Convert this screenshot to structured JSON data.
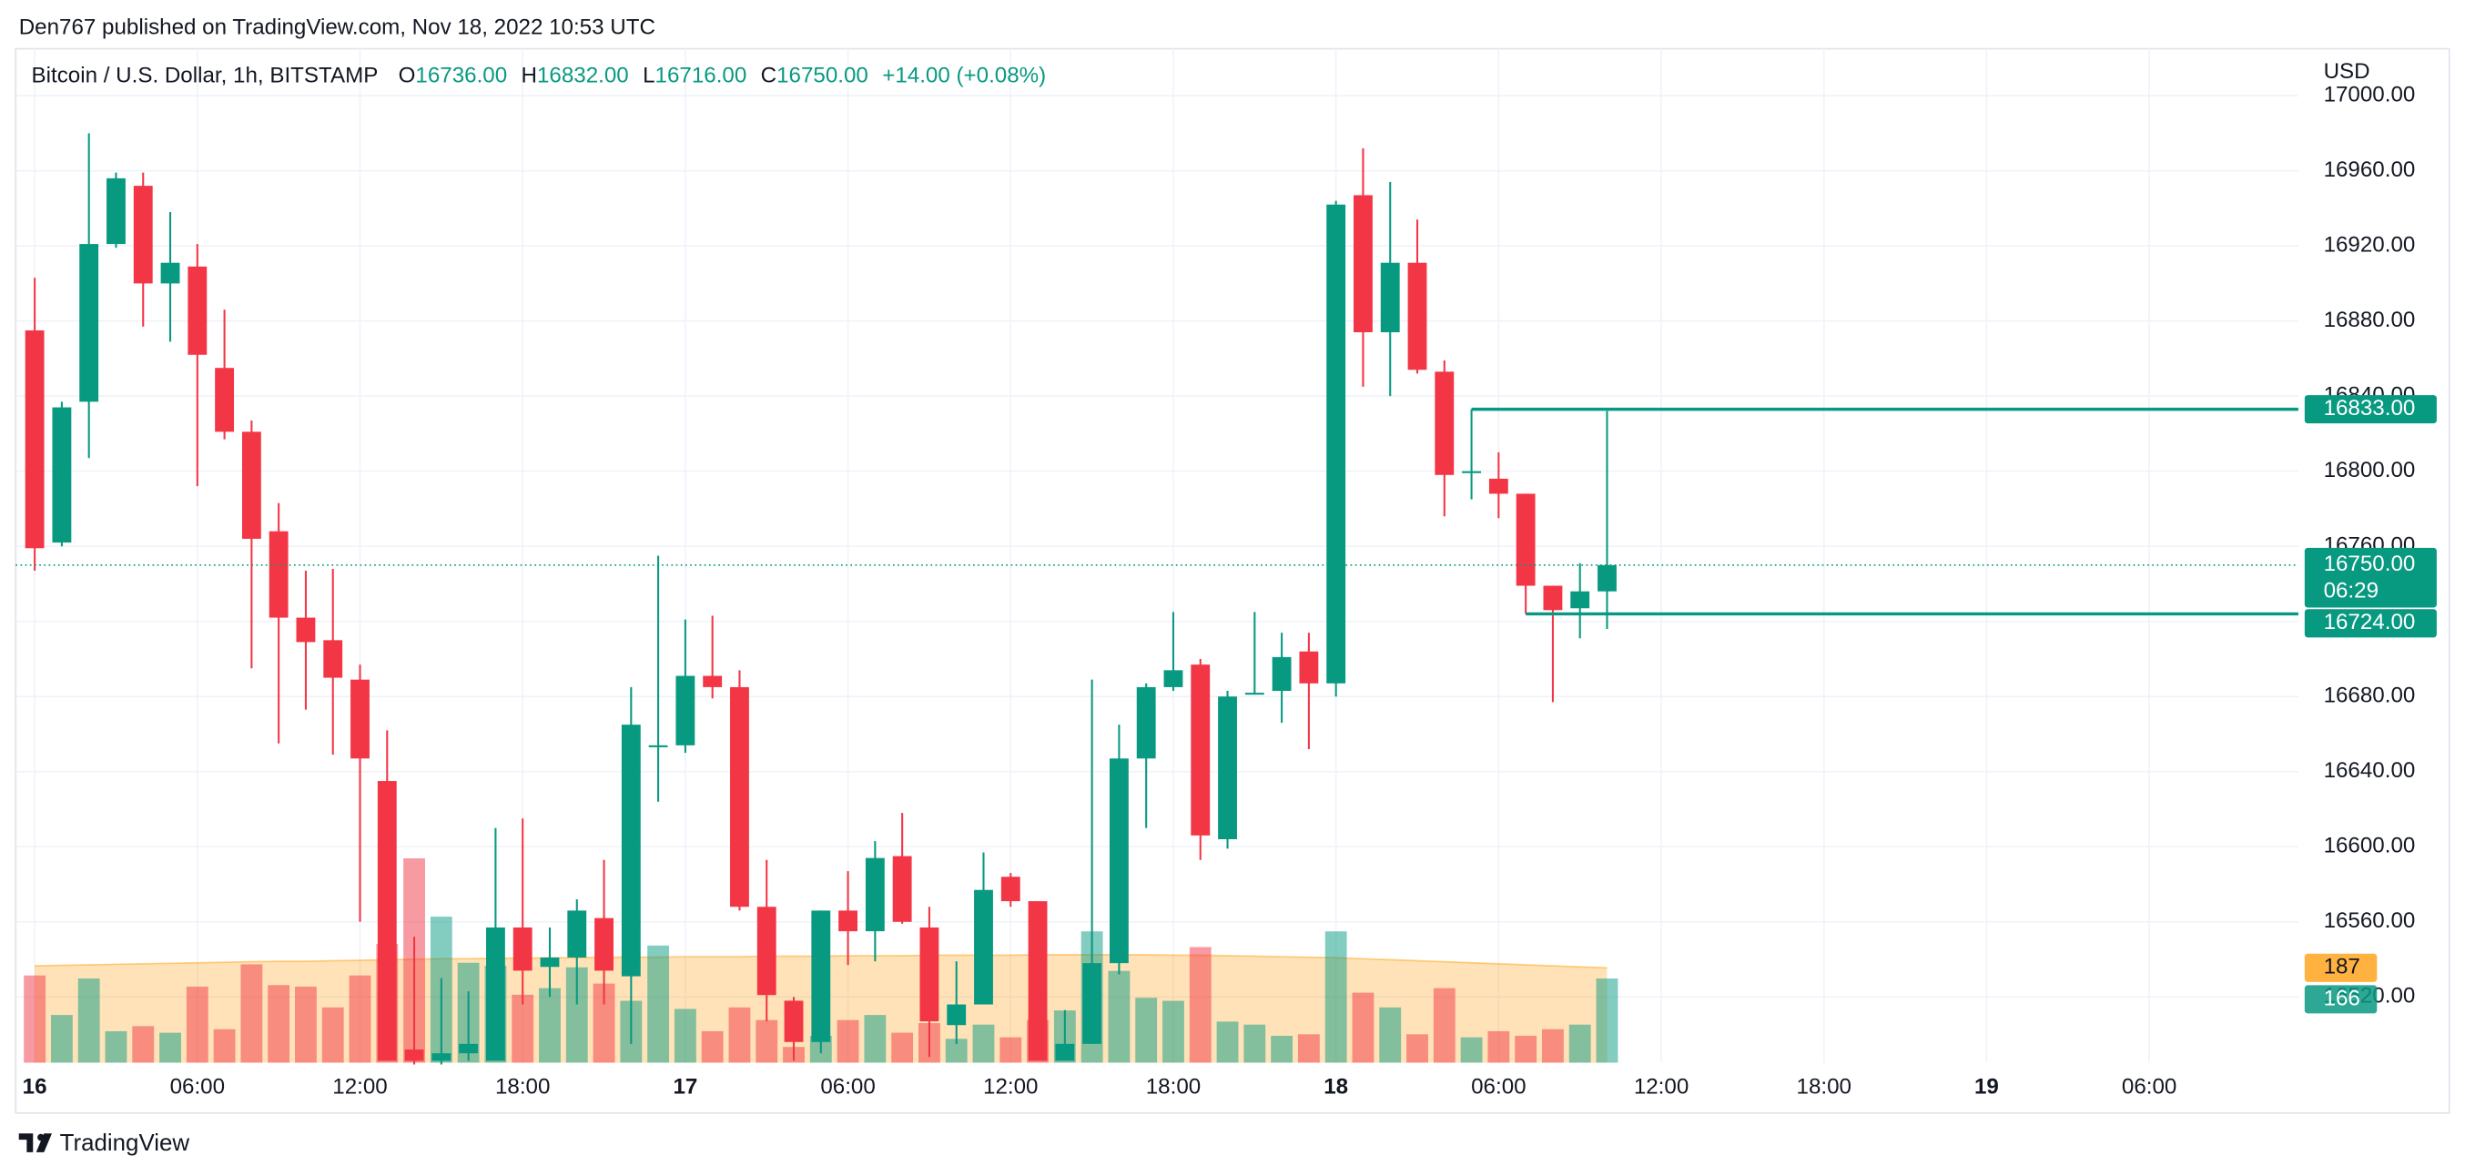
{
  "header": {
    "text": "Den767 published on TradingView.com, Nov 18, 2022 10:53 UTC"
  },
  "footer": {
    "brand": "TradingView"
  },
  "legend": {
    "symbol": "Bitcoin / U.S. Dollar, 1h, BITSTAMP",
    "items": [
      {
        "key": "O",
        "value": "16736.00"
      },
      {
        "key": "H",
        "value": "16832.00"
      },
      {
        "key": "L",
        "value": "16716.00"
      },
      {
        "key": "C",
        "value": "16750.00"
      }
    ],
    "change": "+14.00 (+0.08%)"
  },
  "chart_data": {
    "type": "candlestick",
    "currency": "USD",
    "up_color": "#089981",
    "down_color": "#f23645",
    "up_volume_color": "rgba(8,153,129,0.5)",
    "down_volume_color": "rgba(242,54,69,0.5)",
    "volume_ma_color": "#ff9800",
    "grid": true,
    "x": [
      0,
      1,
      2,
      3,
      4,
      5,
      6,
      7,
      8,
      9,
      10,
      11,
      12,
      13,
      14,
      15,
      16,
      17,
      18,
      19,
      20,
      21,
      22,
      23,
      24,
      25,
      26,
      27,
      28,
      29,
      30,
      31,
      32,
      33,
      34,
      35,
      36,
      37,
      38,
      39,
      40,
      41,
      42,
      43,
      44,
      45,
      46,
      47,
      48,
      49,
      50,
      51,
      52,
      53,
      54,
      55,
      56,
      57,
      58
    ],
    "open": [
      16875,
      16762,
      16837,
      16921,
      16952,
      16900,
      16909,
      16855,
      16821,
      16768,
      16722,
      16710,
      16689,
      16635,
      16492,
      16486,
      16490,
      16486,
      16557,
      16536,
      16541,
      16562,
      16531,
      16653,
      16654,
      16691,
      16685,
      16568,
      16518,
      16496,
      16566,
      16555,
      16595,
      16557,
      16505,
      16516,
      16584,
      16571,
      16486,
      16495,
      16538,
      16647,
      16685,
      16697,
      16604,
      16681,
      16683,
      16704,
      16687,
      16947,
      16874,
      16911,
      16853,
      16799,
      16796,
      16788,
      16739,
      16727,
      16736
    ],
    "high": [
      16903,
      16837,
      16980,
      16959,
      16959,
      16938,
      16921,
      16886,
      16827,
      16783,
      16747,
      16748,
      16697,
      16662,
      16552,
      16530,
      16523,
      16610,
      16615,
      16557,
      16572,
      16593,
      16685,
      16755,
      16721,
      16723,
      16694,
      16593,
      16520,
      16566,
      16587,
      16603,
      16618,
      16568,
      16539,
      16597,
      16586,
      16571,
      16513,
      16689,
      16665,
      16687,
      16725,
      16700,
      16683,
      16725,
      16714,
      16714,
      16944,
      16972,
      16954,
      16934,
      16859,
      16833,
      16810,
      16788,
      16739,
      16751,
      16832
    ],
    "low": [
      16747,
      16760,
      16807,
      16919,
      16877,
      16869,
      16792,
      16817,
      16695,
      16655,
      16673,
      16649,
      16560,
      16486,
      16484,
      16484,
      16486,
      16486,
      16516,
      16520,
      16516,
      16516,
      16495,
      16624,
      16650,
      16679,
      16566,
      16507,
      16486,
      16490,
      16537,
      16539,
      16559,
      16488,
      16495,
      16516,
      16568,
      16486,
      16486,
      16495,
      16532,
      16610,
      16683,
      16593,
      16599,
      16681,
      16666,
      16652,
      16680,
      16845,
      16840,
      16852,
      16776,
      16785,
      16775,
      16724,
      16677,
      16711,
      16716
    ],
    "close": [
      16759,
      16834,
      16921,
      16956,
      16900,
      16911,
      16862,
      16821,
      16764,
      16722,
      16709,
      16690,
      16647,
      16486,
      16486,
      16490,
      16495,
      16557,
      16534,
      16541,
      16566,
      16534,
      16665,
      16654,
      16691,
      16685,
      16568,
      16521,
      16496,
      16566,
      16555,
      16594,
      16560,
      16507,
      16516,
      16577,
      16571,
      16486,
      16495,
      16538,
      16647,
      16685,
      16694,
      16606,
      16680,
      16682,
      16701,
      16687,
      16942,
      16874,
      16911,
      16854,
      16798,
      16800,
      16788,
      16739,
      16726,
      16736,
      16750
    ],
    "volume": [
      172,
      94,
      166,
      62,
      72,
      59,
      150,
      66,
      194,
      153,
      150,
      109,
      172,
      234,
      403,
      288,
      197,
      191,
      134,
      147,
      188,
      156,
      122,
      231,
      106,
      62,
      109,
      84,
      31,
      53,
      84,
      94,
      59,
      78,
      47,
      75,
      50,
      84,
      103,
      259,
      181,
      128,
      122,
      228,
      81,
      75,
      53,
      56,
      259,
      138,
      109,
      56,
      147,
      50,
      62,
      53,
      66,
      75,
      166
    ],
    "volume_ma": [
      191,
      192,
      193,
      194,
      195,
      196,
      197,
      198,
      199,
      200,
      200,
      201,
      202,
      203,
      204,
      205,
      205,
      206,
      206,
      207,
      207,
      208,
      208,
      208,
      209,
      209,
      209,
      210,
      210,
      210,
      211,
      211,
      211,
      212,
      212,
      212,
      212,
      213,
      213,
      213,
      213,
      213,
      212,
      212,
      211,
      210,
      209,
      208,
      207,
      205,
      203,
      201,
      199,
      197,
      195,
      193,
      191,
      189,
      187
    ],
    "volume_lim": [
      0,
      2000
    ],
    "xlim": [
      -0.7,
      83.5
    ],
    "xticks": [
      {
        "value": 0,
        "label": "16"
      },
      {
        "value": 6,
        "label": "06:00"
      },
      {
        "value": 12,
        "label": "12:00"
      },
      {
        "value": 18,
        "label": "18:00"
      },
      {
        "value": 24,
        "label": "17"
      },
      {
        "value": 30,
        "label": "06:00"
      },
      {
        "value": 36,
        "label": "12:00"
      },
      {
        "value": 42,
        "label": "18:00"
      },
      {
        "value": 48,
        "label": "18"
      },
      {
        "value": 54,
        "label": "06:00"
      },
      {
        "value": 60,
        "label": "12:00"
      },
      {
        "value": 66,
        "label": "18:00"
      },
      {
        "value": 72,
        "label": "19"
      },
      {
        "value": 78,
        "label": "06:00"
      }
    ],
    "ylim": [
      16485,
      17025
    ],
    "yticks": [
      {
        "value": 17000,
        "label": "17000.00"
      },
      {
        "value": 16960,
        "label": "16960.00"
      },
      {
        "value": 16920,
        "label": "16920.00"
      },
      {
        "value": 16880,
        "label": "16880.00"
      },
      {
        "value": 16840,
        "label": "16840.00"
      },
      {
        "value": 16800,
        "label": "16800.00"
      },
      {
        "value": 16760,
        "label": "16760.00"
      },
      {
        "value": 16720,
        "label": "16720.00"
      },
      {
        "value": 16680,
        "label": "16680.00"
      },
      {
        "value": 16640,
        "label": "16640.00"
      },
      {
        "value": 16600,
        "label": "16600.00"
      },
      {
        "value": 16560,
        "label": "16560.00"
      },
      {
        "value": 16520,
        "label": "16520.00"
      }
    ],
    "levels": [
      {
        "value": 16833,
        "label": "16833.00",
        "start": 53
      },
      {
        "value": 16724,
        "label": "16724.00",
        "start": 55
      }
    ],
    "last_price": {
      "value": 16750,
      "label": "16750.00",
      "countdown": "06:29"
    }
  }
}
